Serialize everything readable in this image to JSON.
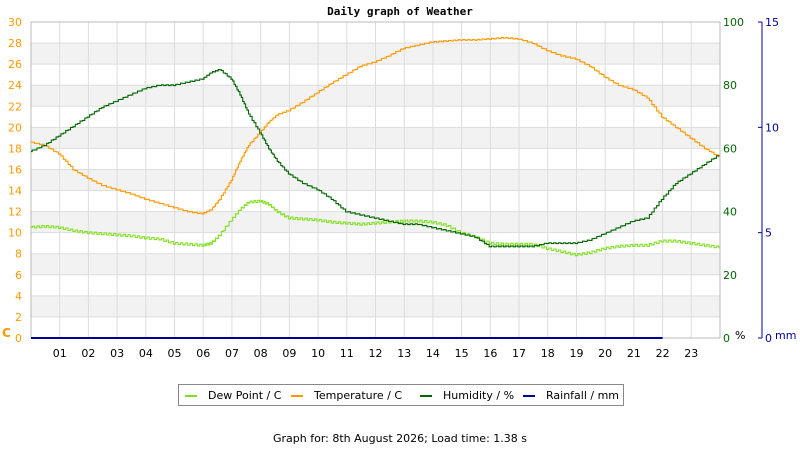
{
  "chart_data": {
    "type": "line",
    "title": "Daily graph of Weather",
    "x_ticks": [
      "01",
      "02",
      "03",
      "04",
      "05",
      "06",
      "07",
      "08",
      "09",
      "10",
      "11",
      "12",
      "13",
      "14",
      "15",
      "16",
      "17",
      "18",
      "19",
      "20",
      "21",
      "22",
      "23"
    ],
    "x_range": [
      0,
      24
    ],
    "grid": true,
    "legend_position": "bottom",
    "axes": {
      "temp": {
        "label": "C",
        "range": [
          0,
          30
        ],
        "ticks": [
          0,
          2,
          4,
          6,
          8,
          10,
          12,
          14,
          16,
          18,
          20,
          22,
          24,
          26,
          28,
          30
        ],
        "color": "#ff9900"
      },
      "humidity": {
        "label": "%",
        "range": [
          0,
          100
        ],
        "ticks": [
          0,
          20,
          40,
          60,
          80,
          100
        ],
        "color": "#006600"
      },
      "rain": {
        "label": "mm",
        "range": [
          0,
          15
        ],
        "ticks": [
          0,
          5,
          10,
          15
        ],
        "color": "#000099"
      }
    },
    "series": [
      {
        "name": "Dew Point / C",
        "axis": "temp",
        "color": "#80e020",
        "x": [
          0,
          0.5,
          1,
          1.5,
          2,
          2.5,
          3,
          3.5,
          4,
          4.5,
          5,
          5.5,
          6,
          6.3,
          6.6,
          7,
          7.3,
          7.6,
          8,
          8.3,
          8.6,
          9,
          9.5,
          10,
          10.5,
          11,
          11.5,
          12,
          12.5,
          13,
          13.5,
          14,
          14.5,
          15,
          15.5,
          16,
          16.5,
          17,
          17.5,
          18,
          18.5,
          19,
          19.5,
          20,
          20.5,
          21,
          21.5,
          22,
          22.5,
          23,
          23.5,
          24
        ],
        "values": [
          10.5,
          10.6,
          10.5,
          10.2,
          10,
          9.9,
          9.8,
          9.7,
          9.5,
          9.4,
          9.0,
          8.9,
          8.8,
          9.0,
          9.8,
          11.2,
          12.2,
          12.9,
          13.0,
          12.7,
          12.0,
          11.4,
          11.3,
          11.2,
          11.0,
          10.9,
          10.8,
          10.9,
          11.0,
          11.1,
          11.1,
          11.0,
          10.7,
          10.0,
          9.6,
          9.0,
          8.9,
          8.9,
          8.9,
          8.5,
          8.2,
          7.9,
          8.1,
          8.5,
          8.7,
          8.8,
          8.8,
          9.2,
          9.2,
          9.0,
          8.8,
          8.6
        ]
      },
      {
        "name": "Temperature / C",
        "axis": "temp",
        "color": "#ff9900",
        "x": [
          0,
          0.5,
          1,
          1.5,
          2,
          2.5,
          3,
          3.5,
          4,
          4.5,
          5,
          5.5,
          6,
          6.3,
          6.6,
          7,
          7.3,
          7.6,
          8,
          8.3,
          8.6,
          9,
          9.5,
          10,
          10.5,
          11,
          11.5,
          12,
          12.5,
          13,
          13.5,
          14,
          14.5,
          15,
          15.5,
          16,
          16.5,
          17,
          17.5,
          18,
          18.5,
          19,
          19.5,
          20,
          20.5,
          21,
          21.5,
          22,
          22.5,
          23,
          23.5,
          24
        ],
        "values": [
          18.6,
          18.3,
          17.5,
          16,
          15.2,
          14.5,
          14.1,
          13.7,
          13.2,
          12.8,
          12.4,
          12.0,
          11.8,
          12.2,
          13.2,
          15,
          16.8,
          18.3,
          19.5,
          20.5,
          21.2,
          21.6,
          22.4,
          23.3,
          24.2,
          25,
          25.8,
          26.2,
          26.8,
          27.5,
          27.8,
          28.1,
          28.2,
          28.3,
          28.3,
          28.4,
          28.5,
          28.4,
          28.0,
          27.3,
          26.8,
          26.5,
          25.8,
          24.8,
          24.0,
          23.6,
          22.8,
          21.0,
          20.0,
          19.0,
          18.0,
          17.2
        ]
      },
      {
        "name": "Humidity / %",
        "axis": "humidity",
        "color": "#006600",
        "x": [
          0,
          0.5,
          1,
          1.5,
          2,
          2.5,
          3,
          3.5,
          4,
          4.5,
          5,
          5.5,
          6,
          6.3,
          6.6,
          7,
          7.3,
          7.6,
          8,
          8.3,
          8.6,
          9,
          9.5,
          10,
          10.5,
          11,
          11.5,
          12,
          12.5,
          13,
          13.5,
          14,
          14.5,
          15,
          15.5,
          16,
          16.5,
          17,
          17.5,
          18,
          18.5,
          19,
          19.5,
          20,
          20.5,
          21,
          21.5,
          22,
          22.5,
          23,
          23.5,
          24
        ],
        "values": [
          59,
          61,
          64,
          67,
          70,
          73,
          75,
          77,
          79,
          80,
          80,
          81,
          82,
          84,
          85,
          82,
          77,
          71,
          65,
          60,
          56,
          52,
          49,
          47,
          44,
          40,
          39,
          38,
          37,
          36,
          36,
          35,
          34,
          33,
          32,
          29,
          29,
          29,
          29,
          30,
          30,
          30,
          31,
          33,
          35,
          37,
          38,
          44,
          49,
          52,
          55,
          58
        ]
      },
      {
        "name": "Rainfall / mm",
        "axis": "rain",
        "color": "#000099",
        "x": [
          0,
          24
        ],
        "values": [
          0,
          0
        ]
      }
    ]
  },
  "legend": {
    "items": [
      {
        "label": "Dew Point / C",
        "color": "#80e020"
      },
      {
        "label": "Temperature / C",
        "color": "#ff9900"
      },
      {
        "label": "Humidity / %",
        "color": "#006600"
      },
      {
        "label": "Rainfall / mm",
        "color": "#000099"
      }
    ]
  },
  "footer": {
    "text": "Graph for: 8th August 2026; Load time: 1.38 s"
  }
}
